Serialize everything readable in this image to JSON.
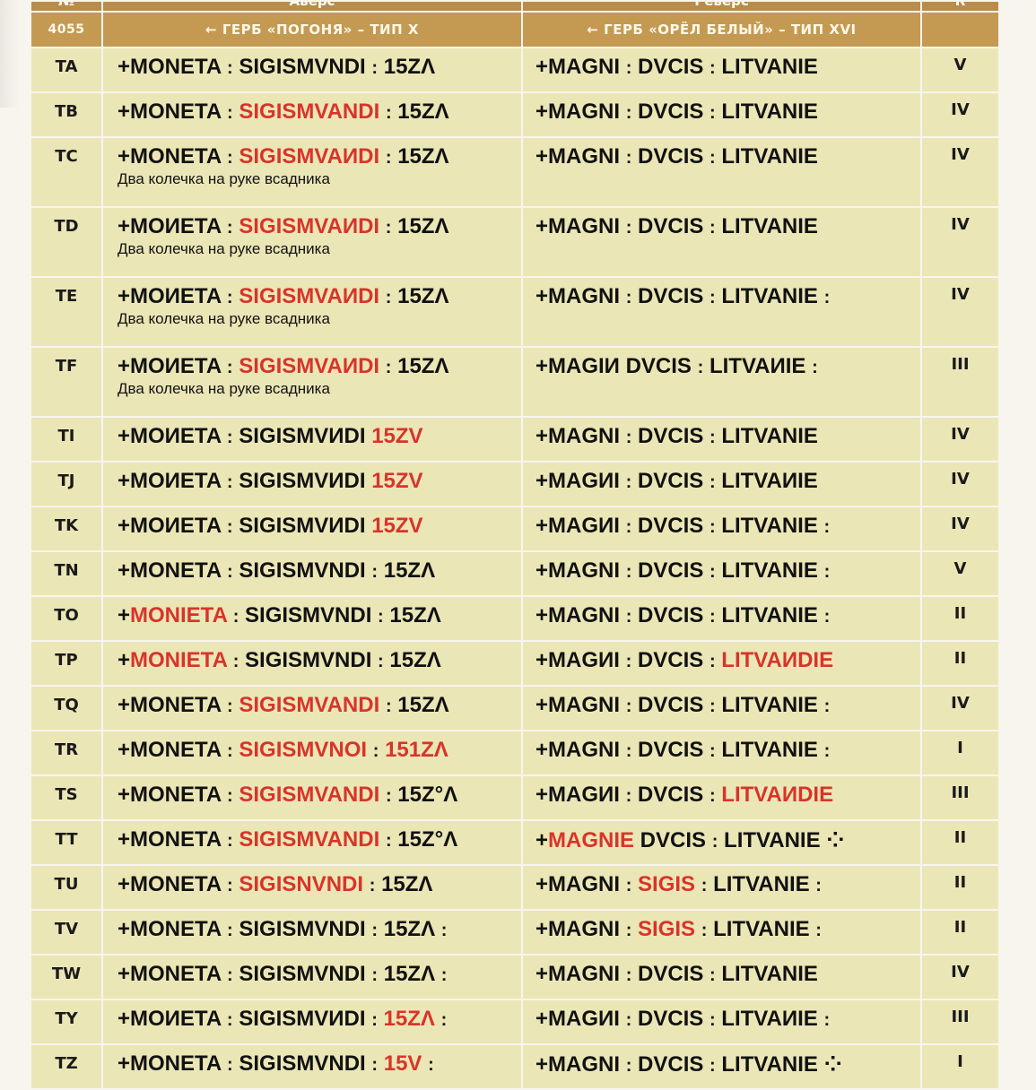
{
  "header": {
    "col_no": "№",
    "col_obverse": "Аверс",
    "col_reverse": "Реверс",
    "col_rarity": "R",
    "catalog_code": "4055",
    "obverse_type": "← ГЕРБ «ПОГОНЯ» – ТИП X",
    "reverse_type": "← ГЕРБ «ОРЁЛ БЕЛЫЙ» – ТИП XVI"
  },
  "rows": [
    {
      "code": "TA",
      "obv": [
        {
          "t": "+MONETA "
        },
        {
          "t": ":",
          "s": 1
        },
        {
          "t": " SIGISMVNDI "
        },
        {
          "t": ":",
          "s": 1
        },
        {
          "t": " 15ZΛ"
        }
      ],
      "note": "",
      "rev": [
        {
          "t": "+MAGNI "
        },
        {
          "t": ":",
          "s": 1
        },
        {
          "t": " DVCIS "
        },
        {
          "t": ":",
          "s": 1
        },
        {
          "t": " LITVANIE"
        }
      ],
      "grade": "V"
    },
    {
      "code": "TB",
      "obv": [
        {
          "t": "+MONETA "
        },
        {
          "t": ":",
          "s": 1
        },
        {
          "t": " "
        },
        {
          "t": "SIGISMVANDI",
          "r": 1
        },
        {
          "t": " "
        },
        {
          "t": ":",
          "s": 1
        },
        {
          "t": " 15ZΛ"
        }
      ],
      "note": "",
      "rev": [
        {
          "t": "+MAGNI "
        },
        {
          "t": ":",
          "s": 1
        },
        {
          "t": " DVCIS "
        },
        {
          "t": ":",
          "s": 1
        },
        {
          "t": " LITVANIE"
        }
      ],
      "grade": "IV"
    },
    {
      "code": "TC",
      "obv": [
        {
          "t": "+MONETA "
        },
        {
          "t": ":",
          "s": 1
        },
        {
          "t": " "
        },
        {
          "t": "SIGISMVAИDI",
          "r": 1
        },
        {
          "t": " "
        },
        {
          "t": ":",
          "s": 1
        },
        {
          "t": " 15ZΛ"
        }
      ],
      "note": "Два колечка на руке всадника",
      "rev": [
        {
          "t": "+MAGNI "
        },
        {
          "t": ":",
          "s": 1
        },
        {
          "t": " DVCIS "
        },
        {
          "t": ":",
          "s": 1
        },
        {
          "t": " LITVANIE"
        }
      ],
      "grade": "IV"
    },
    {
      "code": "TD",
      "obv": [
        {
          "t": "+MOИETA "
        },
        {
          "t": ":",
          "s": 1
        },
        {
          "t": " "
        },
        {
          "t": "SIGISMVAИDI",
          "r": 1
        },
        {
          "t": " "
        },
        {
          "t": ":",
          "s": 1
        },
        {
          "t": " 15ZΛ"
        }
      ],
      "note": "Два колечка на руке всадника",
      "rev": [
        {
          "t": "+MAGNI "
        },
        {
          "t": ":",
          "s": 1
        },
        {
          "t": " DVCIS "
        },
        {
          "t": ":",
          "s": 1
        },
        {
          "t": " LITVANIE"
        }
      ],
      "grade": "IV"
    },
    {
      "code": "TE",
      "obv": [
        {
          "t": "+MOИETA "
        },
        {
          "t": ":",
          "s": 1
        },
        {
          "t": " "
        },
        {
          "t": "SIGISMVAИDI",
          "r": 1
        },
        {
          "t": " "
        },
        {
          "t": ":",
          "s": 1
        },
        {
          "t": " 15ZΛ"
        }
      ],
      "note": "Два колечка на руке всадника",
      "rev": [
        {
          "t": "+MAGNI "
        },
        {
          "t": ":",
          "s": 1
        },
        {
          "t": " DVCIS "
        },
        {
          "t": ":",
          "s": 1
        },
        {
          "t": " LITVANIE "
        },
        {
          "t": ":",
          "s": 1
        }
      ],
      "grade": "IV"
    },
    {
      "code": "TF",
      "obv": [
        {
          "t": "+MOИETA "
        },
        {
          "t": ":",
          "s": 1
        },
        {
          "t": " "
        },
        {
          "t": "SIGISMVAИDI",
          "r": 1
        },
        {
          "t": " "
        },
        {
          "t": ":",
          "s": 1
        },
        {
          "t": " 15ZΛ"
        }
      ],
      "note": "Два колечка на руке всадника",
      "rev": [
        {
          "t": "+MAGIИ   DVCIS "
        },
        {
          "t": ":",
          "s": 1
        },
        {
          "t": " LITVAИIE "
        },
        {
          "t": ":",
          "s": 1
        }
      ],
      "grade": "III"
    },
    {
      "code": "TI",
      "obv": [
        {
          "t": "+MOИETA "
        },
        {
          "t": ":",
          "s": 1
        },
        {
          "t": " SIGISMVИDI  "
        },
        {
          "t": "15ZV",
          "r": 1
        }
      ],
      "note": "",
      "rev": [
        {
          "t": "+MAGNI "
        },
        {
          "t": ":",
          "s": 1
        },
        {
          "t": " DVCIS "
        },
        {
          "t": ":",
          "s": 1
        },
        {
          "t": " LITVANIE"
        }
      ],
      "grade": "IV"
    },
    {
      "code": "TJ",
      "obv": [
        {
          "t": "+MOИETA "
        },
        {
          "t": ":",
          "s": 1
        },
        {
          "t": " SIGISMVИDI  "
        },
        {
          "t": "15ZV",
          "r": 1
        }
      ],
      "note": "",
      "rev": [
        {
          "t": "+MAGИI "
        },
        {
          "t": ":",
          "s": 1
        },
        {
          "t": " DVCIS "
        },
        {
          "t": ":",
          "s": 1
        },
        {
          "t": " LITVAИIE"
        }
      ],
      "grade": "IV"
    },
    {
      "code": "TK",
      "obv": [
        {
          "t": "+MOИETA "
        },
        {
          "t": ":",
          "s": 1
        },
        {
          "t": " SIGISMVИDI  "
        },
        {
          "t": "15ZV",
          "r": 1
        }
      ],
      "note": "",
      "rev": [
        {
          "t": "+MAGИI "
        },
        {
          "t": ":",
          "s": 1
        },
        {
          "t": " DVCIS "
        },
        {
          "t": ":",
          "s": 1
        },
        {
          "t": " LITVANIE "
        },
        {
          "t": ":",
          "s": 1
        }
      ],
      "grade": "IV"
    },
    {
      "code": "TN",
      "obv": [
        {
          "t": "+MONETA "
        },
        {
          "t": ":",
          "s": 1
        },
        {
          "t": " SIGISMVNDI "
        },
        {
          "t": ":",
          "s": 1
        },
        {
          "t": " 15ZΛ"
        }
      ],
      "note": "",
      "rev": [
        {
          "t": "+MAGNI "
        },
        {
          "t": ":",
          "s": 1
        },
        {
          "t": " DVCIS "
        },
        {
          "t": ":",
          "s": 1
        },
        {
          "t": " LITVANIE "
        },
        {
          "t": ":",
          "s": 1
        }
      ],
      "grade": "V"
    },
    {
      "code": "TO",
      "obv": [
        {
          "t": "+"
        },
        {
          "t": "MONIETA",
          "r": 1
        },
        {
          "t": " "
        },
        {
          "t": ":",
          "s": 1
        },
        {
          "t": " SIGISMVNDI "
        },
        {
          "t": ":",
          "s": 1
        },
        {
          "t": " 15ZΛ"
        }
      ],
      "note": "",
      "rev": [
        {
          "t": "+MAGNI "
        },
        {
          "t": ":",
          "s": 1
        },
        {
          "t": " DVCIS "
        },
        {
          "t": ":",
          "s": 1
        },
        {
          "t": " LITVANIE "
        },
        {
          "t": ":",
          "s": 1
        }
      ],
      "grade": "II"
    },
    {
      "code": "TP",
      "obv": [
        {
          "t": "+"
        },
        {
          "t": "MONIETA",
          "r": 1
        },
        {
          "t": " "
        },
        {
          "t": ":",
          "s": 1
        },
        {
          "t": " SIGISMVNDI "
        },
        {
          "t": ":",
          "s": 1
        },
        {
          "t": " 15ZΛ"
        }
      ],
      "note": "",
      "rev": [
        {
          "t": "+MAGИI "
        },
        {
          "t": ":",
          "s": 1
        },
        {
          "t": " DVCIS "
        },
        {
          "t": ":",
          "s": 1
        },
        {
          "t": " "
        },
        {
          "t": "LITVAИDIE",
          "r": 1
        }
      ],
      "grade": "II"
    },
    {
      "code": "TQ",
      "obv": [
        {
          "t": "+MONETA "
        },
        {
          "t": ":",
          "s": 1
        },
        {
          "t": " "
        },
        {
          "t": "SIGISMVANDI",
          "r": 1
        },
        {
          "t": " "
        },
        {
          "t": ":",
          "s": 1
        },
        {
          "t": " 15ZΛ"
        }
      ],
      "note": "",
      "rev": [
        {
          "t": "+MAGNI "
        },
        {
          "t": ":",
          "s": 1
        },
        {
          "t": " DVCIS "
        },
        {
          "t": ":",
          "s": 1
        },
        {
          "t": " LITVANIE "
        },
        {
          "t": ":",
          "s": 1
        }
      ],
      "grade": "IV"
    },
    {
      "code": "TR",
      "obv": [
        {
          "t": "+MONETA "
        },
        {
          "t": ":",
          "s": 1
        },
        {
          "t": " "
        },
        {
          "t": "SIGISMVNOI",
          "r": 1
        },
        {
          "t": " "
        },
        {
          "t": ":",
          "s": 1
        },
        {
          "t": " "
        },
        {
          "t": "151ZΛ",
          "r": 1
        }
      ],
      "note": "",
      "rev": [
        {
          "t": "+MAGNI "
        },
        {
          "t": ":",
          "s": 1
        },
        {
          "t": " DVCIS "
        },
        {
          "t": ":",
          "s": 1
        },
        {
          "t": " LITVANIE "
        },
        {
          "t": ":",
          "s": 1
        }
      ],
      "grade": "I"
    },
    {
      "code": "TS",
      "obv": [
        {
          "t": "+MONETA "
        },
        {
          "t": ":",
          "s": 1
        },
        {
          "t": " "
        },
        {
          "t": "SIGISMVANDI",
          "r": 1
        },
        {
          "t": " "
        },
        {
          "t": ":",
          "s": 1
        },
        {
          "t": " 15Z°Λ"
        }
      ],
      "note": "",
      "rev": [
        {
          "t": "+MAGИI "
        },
        {
          "t": ":",
          "s": 1
        },
        {
          "t": " DVCIS "
        },
        {
          "t": ":",
          "s": 1
        },
        {
          "t": " "
        },
        {
          "t": "LITVAИDIE",
          "r": 1
        }
      ],
      "grade": "III"
    },
    {
      "code": "TT",
      "obv": [
        {
          "t": "+MONETA "
        },
        {
          "t": ":",
          "s": 1
        },
        {
          "t": " "
        },
        {
          "t": "SIGISMVANDI",
          "r": 1
        },
        {
          "t": " "
        },
        {
          "t": ":",
          "s": 1
        },
        {
          "t": " 15Z°Λ"
        }
      ],
      "note": "",
      "rev": [
        {
          "t": "+"
        },
        {
          "t": "MAGNIE",
          "r": 1
        },
        {
          "t": " DVCIS "
        },
        {
          "t": ":",
          "s": 1
        },
        {
          "t": " LITVANIE ⁘"
        }
      ],
      "grade": "II"
    },
    {
      "code": "TU",
      "obv": [
        {
          "t": "+MONETA "
        },
        {
          "t": ":",
          "s": 1
        },
        {
          "t": " "
        },
        {
          "t": "SIGISNVNDI",
          "r": 1
        },
        {
          "t": " "
        },
        {
          "t": ":",
          "s": 1
        },
        {
          "t": " 15ZΛ"
        }
      ],
      "note": "",
      "rev": [
        {
          "t": "+MAGNI "
        },
        {
          "t": ":",
          "s": 1
        },
        {
          "t": " "
        },
        {
          "t": "SIGIS",
          "r": 1
        },
        {
          "t": " "
        },
        {
          "t": ":",
          "s": 1
        },
        {
          "t": " LITVANIE "
        },
        {
          "t": ":",
          "s": 1
        }
      ],
      "grade": "II"
    },
    {
      "code": "TV",
      "obv": [
        {
          "t": "+MONETA "
        },
        {
          "t": ":",
          "s": 1
        },
        {
          "t": " SIGISMVNDI "
        },
        {
          "t": ":",
          "s": 1
        },
        {
          "t": " 15ZΛ "
        },
        {
          "t": ":",
          "s": 1
        }
      ],
      "note": "",
      "rev": [
        {
          "t": "+MAGNI "
        },
        {
          "t": ":",
          "s": 1
        },
        {
          "t": " "
        },
        {
          "t": "SIGIS",
          "r": 1
        },
        {
          "t": " "
        },
        {
          "t": ":",
          "s": 1
        },
        {
          "t": " LITVANIE "
        },
        {
          "t": ":",
          "s": 1
        }
      ],
      "grade": "II"
    },
    {
      "code": "TW",
      "obv": [
        {
          "t": "+MONETA "
        },
        {
          "t": ":",
          "s": 1
        },
        {
          "t": " SIGISMVNDI "
        },
        {
          "t": ":",
          "s": 1
        },
        {
          "t": " 15ZΛ "
        },
        {
          "t": ":",
          "s": 1
        }
      ],
      "note": "",
      "rev": [
        {
          "t": "+MAGNI "
        },
        {
          "t": ":",
          "s": 1
        },
        {
          "t": " DVCIS "
        },
        {
          "t": ":",
          "s": 1
        },
        {
          "t": " LITVANIE"
        }
      ],
      "grade": "IV"
    },
    {
      "code": "TY",
      "obv": [
        {
          "t": "+MOИETA "
        },
        {
          "t": ":",
          "s": 1
        },
        {
          "t": " SIGISMVИDI "
        },
        {
          "t": ":",
          "s": 1
        },
        {
          "t": " "
        },
        {
          "t": "15ZΛ",
          "r": 1
        },
        {
          "t": " "
        },
        {
          "t": ":",
          "s": 1
        }
      ],
      "note": "",
      "rev": [
        {
          "t": "+MAGИI "
        },
        {
          "t": ":",
          "s": 1
        },
        {
          "t": " DVCIS "
        },
        {
          "t": ":",
          "s": 1
        },
        {
          "t": " LITVAИIE "
        },
        {
          "t": ":",
          "s": 1
        }
      ],
      "grade": "III"
    },
    {
      "code": "TZ",
      "obv": [
        {
          "t": "+MONETA "
        },
        {
          "t": ":",
          "s": 1
        },
        {
          "t": " SIGISMVNDI "
        },
        {
          "t": ":",
          "s": 1
        },
        {
          "t": " "
        },
        {
          "t": "15V",
          "r": 1
        },
        {
          "t": " "
        },
        {
          "t": ":",
          "s": 1
        }
      ],
      "note": "",
      "rev": [
        {
          "t": "+MAGNI "
        },
        {
          "t": ":",
          "s": 1
        },
        {
          "t": " DVCIS "
        },
        {
          "t": ":",
          "s": 1
        },
        {
          "t": " LITVANIE ⁘"
        }
      ],
      "grade": "I"
    }
  ],
  "colors": {
    "header_dark": "#b98c48",
    "header": "#c49a53",
    "row_bg": "#ebe6b6",
    "error_red": "#d8342a"
  }
}
